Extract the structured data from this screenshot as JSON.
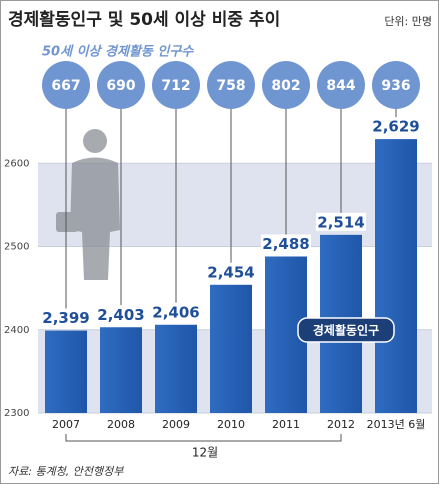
{
  "chart_data": {
    "type": "bar",
    "title": "경제활동인구 및 50세 이상 비중 추이",
    "unit": "단위: 만명",
    "categories": [
      "2007",
      "2008",
      "2009",
      "2010",
      "2011",
      "2012",
      "2013년 6월"
    ],
    "series": [
      {
        "name": "경제활동인구",
        "color": "#2f6cc1",
        "values": [
          2399,
          2403,
          2406,
          2454,
          2488,
          2514,
          2629
        ],
        "value_labels": [
          "2,399",
          "2,403",
          "2,406",
          "2,454",
          "2,488",
          "2,514",
          "2,629"
        ]
      },
      {
        "name": "50세 이상 경제활동 인구수",
        "color": "#7096d1",
        "values": [
          667,
          690,
          712,
          758,
          802,
          844,
          936
        ]
      }
    ],
    "ylim": [
      2300,
      2700
    ],
    "yticks": [
      2300,
      2400,
      2500,
      2600
    ],
    "grid": true,
    "annotation": "12월",
    "source": "자료: 통계청, 안전행정부"
  }
}
